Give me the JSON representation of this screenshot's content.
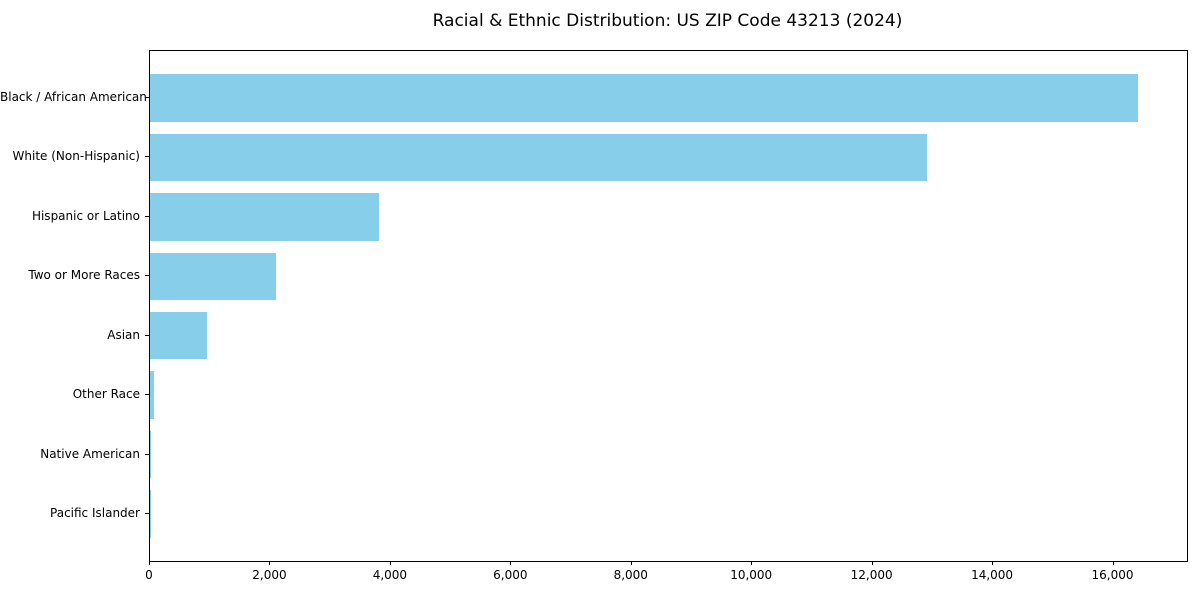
{
  "chart_data": {
    "type": "bar",
    "orientation": "horizontal",
    "title": "Racial & Ethnic Distribution: US ZIP Code 43213 (2024)",
    "categories": [
      "Black / African American",
      "White (Non-Hispanic)",
      "Hispanic or Latino",
      "Two or More Races",
      "Asian",
      "Other Race",
      "Native American",
      "Pacific Islander"
    ],
    "values": [
      16400,
      12900,
      3800,
      2100,
      950,
      60,
      20,
      10
    ],
    "xlabel": "",
    "ylabel": "",
    "xlim": [
      0,
      17220
    ],
    "x_ticks": [
      0,
      2000,
      4000,
      6000,
      8000,
      10000,
      12000,
      14000,
      16000
    ],
    "x_tick_labels": [
      "0",
      "2,000",
      "4,000",
      "6,000",
      "8,000",
      "10,000",
      "12,000",
      "14,000",
      "16,000"
    ],
    "bar_color": "#87CEEB",
    "background_color": "#ffffff",
    "axis_color": "#000000",
    "text_color": "#000000",
    "grid": false,
    "legend": "none"
  }
}
